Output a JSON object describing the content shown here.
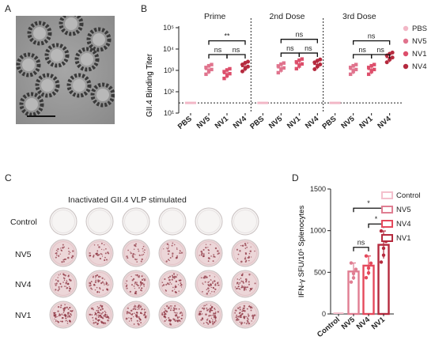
{
  "panels": {
    "a": "A",
    "b": "B",
    "c": "C",
    "d": "D"
  },
  "panelB": {
    "ylabel": "GII.4 Binding Titer",
    "yticks": [
      "10⁵",
      "10⁴",
      "10³",
      "10²",
      "10¹"
    ],
    "groups": [
      "Prime",
      "2nd Dose",
      "3rd Dose"
    ],
    "xcategories": [
      "PBS",
      "NV5",
      "NV1",
      "NV4"
    ],
    "legend": [
      "PBS",
      "NV5",
      "NV1",
      "NV4"
    ],
    "sig": {
      "prime": [
        "ns",
        "ns",
        "**"
      ],
      "dose2": [
        "ns",
        "ns",
        "ns"
      ],
      "dose3": [
        "ns",
        "ns",
        "ns"
      ]
    }
  },
  "panelC": {
    "title": "Inactivated GII.4 VLP stimulated",
    "rows": [
      "Control",
      "NV5",
      "NV4",
      "NV1"
    ]
  },
  "panelD": {
    "ylabel": "IFN-γ SFU/10⁵ Splenocytes",
    "yticks": [
      "1500",
      "1000",
      "500",
      "0"
    ],
    "xcategories": [
      "Control",
      "NV5",
      "NV4",
      "NV1"
    ],
    "legend": [
      "Control",
      "NV5",
      "NV4",
      "NV1"
    ],
    "sig": [
      "*",
      "*",
      "ns"
    ]
  },
  "colors": {
    "pbs": "#f2b7c6",
    "nv5": "#e0738d",
    "nv1": "#dd4e6b",
    "nv4": "#b52a3e",
    "ctrl_bar": "#f4c0cd",
    "nv5_bar": "#e07e92",
    "nv4_bar": "#e5495c",
    "nv1_bar": "#b52a3e"
  },
  "chart_data": [
    {
      "type": "scatter",
      "title": "",
      "ylabel": "GII.4 Binding Titer",
      "yscale": "log",
      "ylim": [
        10,
        100000
      ],
      "groups": [
        "Prime",
        "2nd Dose",
        "3rd Dose"
      ],
      "categories": [
        "PBS",
        "NV5",
        "NV1",
        "NV4"
      ],
      "series": [
        {
          "group": "Prime",
          "means": [
            30,
            1100,
            700,
            1500
          ]
        },
        {
          "group": "2nd Dose",
          "means": [
            30,
            1300,
            2000,
            1900
          ]
        },
        {
          "group": "3rd Dose",
          "means": [
            30,
            1100,
            1100,
            4000
          ]
        }
      ],
      "limit_of_detection": 30
    },
    {
      "type": "bar",
      "title": "",
      "ylabel": "IFN-γ SFU/10⁵ Splenocytes",
      "ylim": [
        0,
        1500
      ],
      "categories": [
        "Control",
        "NV5",
        "NV4",
        "NV1"
      ],
      "values": [
        0,
        510,
        580,
        830
      ]
    }
  ]
}
